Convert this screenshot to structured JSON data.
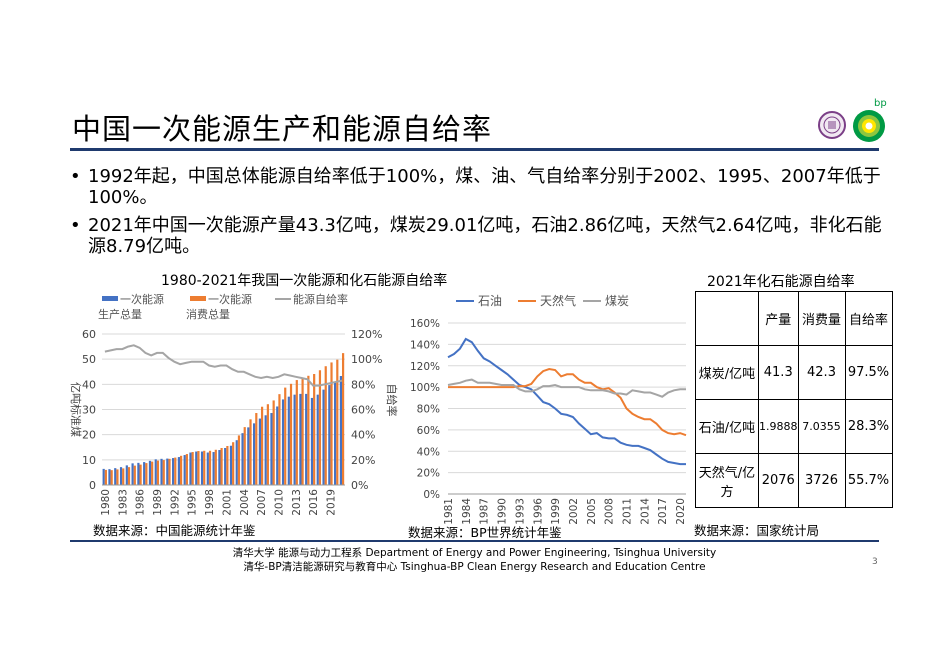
{
  "page": {
    "title": "中国一次能源生产和能源自给率",
    "bullets": [
      "1992年起，中国总体能源自给率低于100%，煤、油、气自给率分别于2002、1995、2007年低于100%。",
      "2021年中国一次能源产量43.3亿吨，煤炭29.01亿吨，石油2.86亿吨，天然气2.64亿吨，非化石能源8.79亿吨。"
    ],
    "page_number": "3",
    "footer": {
      "line1": "清华大学 能源与动力工程系 Department of Energy and Power Engineering, Tsinghua University",
      "line2": "清华-BP清洁能源研究与教育中心 Tsinghua-BP Clean Energy Research and Education Centre"
    },
    "logos": {
      "bp_text": "bp"
    }
  },
  "chart_data": [
    {
      "type": "bar",
      "title": "1980-2021年我国一次能源和化石能源自给率",
      "ylabel": "亿吨标准煤",
      "ylim": [
        0,
        60
      ],
      "y2lim": [
        0,
        120
      ],
      "yticks": [
        "0",
        "10",
        "20",
        "30",
        "40",
        "50",
        "60"
      ],
      "y2ticks": [
        "0%",
        "20%",
        "40%",
        "60%",
        "80%",
        "100%",
        "120%"
      ],
      "xticks": [
        "1980",
        "1983",
        "1986",
        "1989",
        "1992",
        "1995",
        "1998",
        "2001",
        "2004",
        "2007",
        "2010",
        "2013",
        "2016",
        "2019"
      ],
      "years": [
        1980,
        1981,
        1982,
        1983,
        1984,
        1985,
        1986,
        1987,
        1988,
        1989,
        1990,
        1991,
        1992,
        1993,
        1994,
        1995,
        1996,
        1997,
        1998,
        1999,
        2000,
        2001,
        2002,
        2003,
        2004,
        2005,
        2006,
        2007,
        2008,
        2009,
        2010,
        2011,
        2012,
        2013,
        2014,
        2015,
        2016,
        2017,
        2018,
        2019,
        2020,
        2021
      ],
      "legend": [
        {
          "name": "一次能源生产总量",
          "color": "#4472c4"
        },
        {
          "name": "一次能源消费总量",
          "color": "#ed7d31"
        },
        {
          "name": "能源自给率",
          "color": "#a5a5a5"
        }
      ],
      "series": [
        {
          "name": "一次能源生产总量",
          "color": "#4472c4",
          "values": [
            6.4,
            6.3,
            6.7,
            7.1,
            7.8,
            8.6,
            8.8,
            9.1,
            9.6,
            10.2,
            10.4,
            10.5,
            10.7,
            11.1,
            11.9,
            12.9,
            13.3,
            13.3,
            12.9,
            13.1,
            13.9,
            14.7,
            15.6,
            17.8,
            20.6,
            22.9,
            24.5,
            26.4,
            27.7,
            28.6,
            31.2,
            34.0,
            35.1,
            35.9,
            36.2,
            36.2,
            34.6,
            35.9,
            37.9,
            39.7,
            40.8,
            43.3
          ]
        },
        {
          "name": "一次能源消费总量",
          "color": "#ed7d31",
          "values": [
            6.0,
            5.9,
            6.2,
            6.6,
            7.1,
            7.7,
            8.1,
            8.7,
            9.3,
            9.7,
            9.9,
            10.4,
            10.9,
            11.6,
            12.3,
            13.1,
            13.5,
            13.6,
            13.6,
            14.0,
            14.7,
            15.5,
            17.0,
            19.7,
            23.0,
            26.1,
            28.6,
            31.1,
            32.1,
            33.6,
            36.1,
            38.7,
            40.2,
            41.7,
            42.6,
            43.4,
            44.1,
            45.6,
            47.2,
            48.7,
            49.8,
            52.4
          ]
        },
        {
          "name": "能源自给率",
          "color": "#a5a5a5",
          "axis": "right",
          "values": [
            106,
            107,
            108,
            108,
            110,
            111,
            109,
            105,
            103,
            105,
            105,
            101,
            98,
            96,
            97,
            98,
            98,
            98,
            95,
            94,
            95,
            95,
            92,
            90,
            90,
            88,
            86,
            85,
            86,
            85,
            86,
            88,
            87,
            86,
            85,
            84,
            79,
            79,
            80,
            81,
            82,
            83
          ]
        }
      ],
      "source": "数据来源：中国能源统计年鉴"
    },
    {
      "type": "line",
      "title": "",
      "ylabel": "自给率",
      "ylim": [
        0,
        160
      ],
      "yticks": [
        "0%",
        "20%",
        "40%",
        "60%",
        "80%",
        "100%",
        "120%",
        "140%",
        "160%"
      ],
      "xticks": [
        "1981",
        "1984",
        "1987",
        "1990",
        "1993",
        "1996",
        "1999",
        "2002",
        "2005",
        "2008",
        "2011",
        "2014",
        "2017",
        "2020"
      ],
      "years": [
        1981,
        1982,
        1983,
        1984,
        1985,
        1986,
        1987,
        1988,
        1989,
        1990,
        1991,
        1992,
        1993,
        1994,
        1995,
        1996,
        1997,
        1998,
        1999,
        2000,
        2001,
        2002,
        2003,
        2004,
        2005,
        2006,
        2007,
        2008,
        2009,
        2010,
        2011,
        2012,
        2013,
        2014,
        2015,
        2016,
        2017,
        2018,
        2019,
        2020,
        2021
      ],
      "legend": [
        {
          "name": "石油",
          "color": "#4472c4"
        },
        {
          "name": "天然气",
          "color": "#ed7d31"
        },
        {
          "name": "煤炭",
          "color": "#a5a5a5"
        }
      ],
      "series": [
        {
          "name": "石油",
          "color": "#4472c4",
          "values": [
            128,
            131,
            136,
            145,
            142,
            134,
            127,
            124,
            120,
            116,
            112,
            107,
            102,
            100,
            98,
            92,
            86,
            84,
            80,
            75,
            74,
            72,
            66,
            61,
            56,
            57,
            53,
            52,
            52,
            48,
            46,
            45,
            45,
            43,
            41,
            37,
            33,
            30,
            29,
            28,
            28
          ]
        },
        {
          "name": "天然气",
          "color": "#ed7d31",
          "values": [
            100,
            100,
            100,
            100,
            100,
            100,
            100,
            100,
            100,
            100,
            100,
            100,
            101,
            101,
            103,
            110,
            115,
            117,
            116,
            110,
            112,
            112,
            107,
            104,
            104,
            100,
            98,
            99,
            95,
            90,
            80,
            75,
            72,
            70,
            70,
            66,
            60,
            57,
            56,
            57,
            55
          ]
        },
        {
          "name": "煤炭",
          "color": "#a5a5a5",
          "values": [
            102,
            103,
            104,
            106,
            107,
            104,
            104,
            104,
            103,
            102,
            102,
            102,
            98,
            96,
            96,
            98,
            101,
            101,
            102,
            100,
            100,
            100,
            100,
            98,
            97,
            97,
            97,
            96,
            94,
            94,
            93,
            97,
            96,
            95,
            95,
            93,
            91,
            95,
            97,
            98,
            98
          ]
        }
      ],
      "source": "数据来源：BP世界统计年鉴"
    },
    {
      "type": "table",
      "title": "2021年化石能源自给率",
      "header": [
        "",
        "产量",
        "消费量",
        "自给率"
      ],
      "rows": [
        [
          "煤炭/亿吨",
          "41.3",
          "42.3",
          "97.5%"
        ],
        [
          "石油/亿吨",
          "1.9888",
          "7.0355",
          "28.3%"
        ],
        [
          "天然气/亿方",
          "2076",
          "3726",
          "55.7%"
        ]
      ],
      "source": "数据来源：国家统计局"
    }
  ]
}
